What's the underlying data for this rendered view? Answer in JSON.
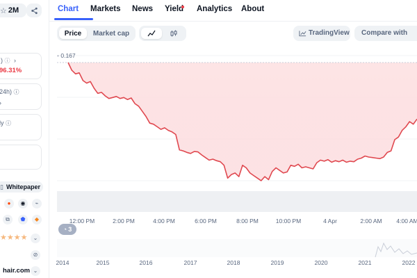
{
  "sidebar": {
    "watchlist_count": "2M",
    "market_cap_change": "96.31%",
    "volume_label": "24h)",
    "fdv_label": "ly",
    "whitepaper_label": "Whitepaper",
    "website_label": "hair.com"
  },
  "tabs": [
    {
      "label": "Chart"
    },
    {
      "label": "Markets"
    },
    {
      "label": "News"
    },
    {
      "label": "Yield"
    },
    {
      "label": "Analytics"
    },
    {
      "label": "About"
    }
  ],
  "toolbar": {
    "price_label": "Price",
    "market_cap_label": "Market cap",
    "tradingview_label": "TradingView",
    "compare_label": "Compare with"
  },
  "badge_count": "3",
  "colors": {
    "accent": "#3861fb",
    "line": "#e0484f",
    "negative": "#ea3943",
    "yield_dot": "#ea3943"
  },
  "chart_data": {
    "type": "area",
    "start_label": "0.167",
    "x_ticks": [
      "12:00 PM",
      "2:00 PM",
      "4:00 PM",
      "6:00 PM",
      "8:00 PM",
      "10:00 PM",
      "4 Apr",
      "2:00 AM",
      "4:00 AM"
    ],
    "series": [
      {
        "values": [
          0.167,
          0.1655,
          0.1648,
          0.165,
          0.1635,
          0.163,
          0.1633,
          0.162,
          0.161,
          0.1612,
          0.1605,
          0.16,
          0.1602,
          0.1604,
          0.16,
          0.1602,
          0.1598,
          0.1601,
          0.159,
          0.1585,
          0.1575,
          0.1565,
          0.1552,
          0.155,
          0.1545,
          0.154,
          0.1543,
          0.1538,
          0.1535,
          0.153,
          0.15,
          0.1498,
          0.1495,
          0.1493,
          0.1497,
          0.1496,
          0.149,
          0.1485,
          0.148,
          0.1482,
          0.1479,
          0.1477,
          0.147,
          0.1445,
          0.1452,
          0.1455,
          0.1448,
          0.147,
          0.1465,
          0.1455,
          0.145,
          0.1445,
          0.144,
          0.1448,
          0.1442,
          0.1458,
          0.1465,
          0.146,
          0.1455,
          0.1457,
          0.147,
          0.1468,
          0.1472,
          0.1465,
          0.1467,
          0.1465,
          0.1463,
          0.1475,
          0.148,
          0.1478,
          0.1481,
          0.1476,
          0.1479,
          0.1477,
          0.148,
          0.1476,
          0.1478,
          0.1477,
          0.1482,
          0.1484,
          0.1488,
          0.1486,
          0.1485,
          0.1484,
          0.1483,
          0.1486,
          0.1495,
          0.1498,
          0.152,
          0.1525,
          0.1538,
          0.1545,
          0.1555,
          0.155,
          0.156
        ]
      }
    ]
  },
  "timeline_years": [
    "2014",
    "2015",
    "2016",
    "2017",
    "2018",
    "2019",
    "2020",
    "2021",
    "2022"
  ]
}
